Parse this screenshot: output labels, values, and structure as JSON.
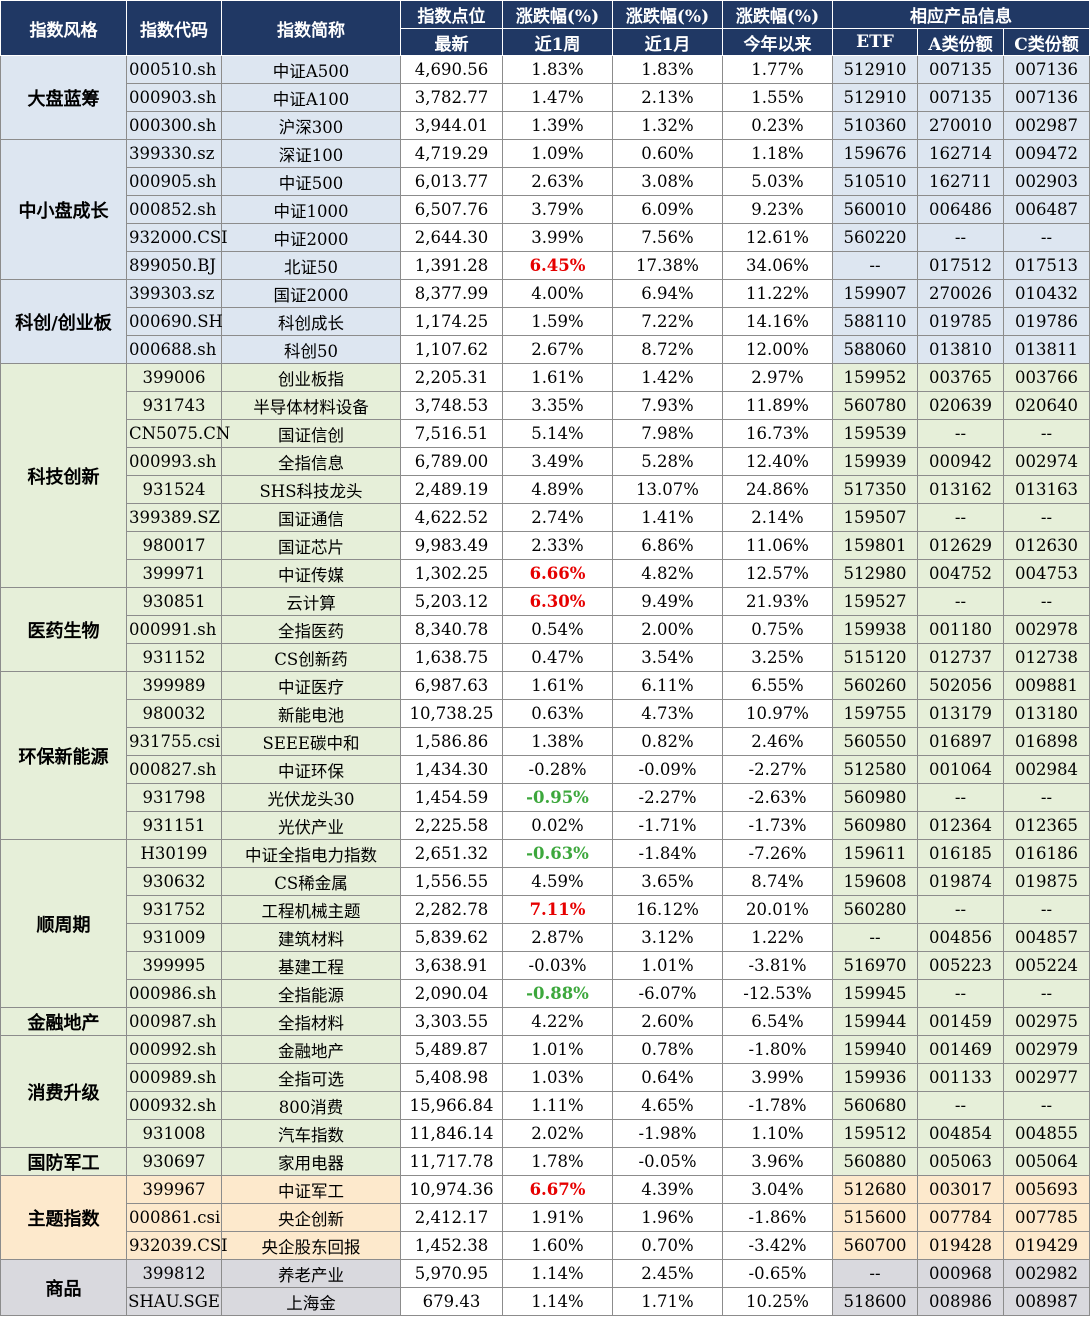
{
  "header": {
    "col_style": "指数风格",
    "col_code": "指数代码",
    "col_name": "指数简称",
    "col_points": "指数点位",
    "col_points_sub": "最新",
    "col_week": "涨跌幅(%)",
    "col_week_sub": "近1周",
    "col_month": "涨跌幅(%)",
    "col_month_sub": "近1月",
    "col_ytd": "涨跌幅(%)",
    "col_ytd_sub": "今年以来",
    "col_products": "相应产品信息",
    "col_etf": "ETF",
    "col_a": "A类份额",
    "col_c": "C类份额"
  },
  "groups": [
    {
      "style": "大盘蓝筹",
      "bg": "blue",
      "rows": [
        {
          "code": "000510.sh",
          "name": "中证A500",
          "points": "4,690.56",
          "week": "1.83%",
          "month": "1.83%",
          "ytd": "1.77%",
          "etf": "512910",
          "a": "007135",
          "c": "007136"
        },
        {
          "code": "000903.sh",
          "name": "中证A100",
          "points": "3,782.77",
          "week": "1.47%",
          "month": "2.13%",
          "ytd": "1.55%",
          "etf": "512910",
          "a": "007135",
          "c": "007136"
        },
        {
          "code": "000300.sh",
          "name": "沪深300",
          "points": "3,944.01",
          "week": "1.39%",
          "month": "1.32%",
          "ytd": "0.23%",
          "etf": "510360",
          "a": "270010",
          "c": "002987"
        }
      ]
    },
    {
      "style": "中小盘成长",
      "bg": "blue",
      "rows": [
        {
          "code": "399330.sz",
          "name": "深证100",
          "points": "4,719.29",
          "week": "1.09%",
          "month": "0.60%",
          "ytd": "1.18%",
          "etf": "159676",
          "a": "162714",
          "c": "009472"
        },
        {
          "code": "000905.sh",
          "name": "中证500",
          "points": "6,013.77",
          "week": "2.63%",
          "month": "3.08%",
          "ytd": "5.03%",
          "etf": "510510",
          "a": "162711",
          "c": "002903"
        },
        {
          "code": "000852.sh",
          "name": "中证1000",
          "points": "6,507.76",
          "week": "3.79%",
          "month": "6.09%",
          "ytd": "9.23%",
          "etf": "560010",
          "a": "006486",
          "c": "006487"
        },
        {
          "code": "932000.CSI",
          "name": "中证2000",
          "points": "2,644.30",
          "week": "3.99%",
          "month": "7.56%",
          "ytd": "12.61%",
          "etf": "560220",
          "a": "--",
          "c": "--"
        },
        {
          "code": "899050.BJ",
          "name": "北证50",
          "points": "1,391.28",
          "week": "6.45%",
          "week_hl": "red",
          "month": "17.38%",
          "ytd": "34.06%",
          "etf": "--",
          "a": "017512",
          "c": "017513"
        }
      ]
    },
    {
      "style": "科创/创业板",
      "bg": "blue",
      "rows": [
        {
          "code": "399303.sz",
          "name": "国证2000",
          "points": "8,377.99",
          "week": "4.00%",
          "month": "6.94%",
          "ytd": "11.22%",
          "etf": "159907",
          "a": "270026",
          "c": "010432"
        },
        {
          "code": "000690.SH",
          "name": "科创成长",
          "points": "1,174.25",
          "week": "1.59%",
          "month": "7.22%",
          "ytd": "14.16%",
          "etf": "588110",
          "a": "019785",
          "c": "019786"
        },
        {
          "code": "000688.sh",
          "name": "科创50",
          "points": "1,107.62",
          "week": "2.67%",
          "month": "8.72%",
          "ytd": "12.00%",
          "etf": "588060",
          "a": "013810",
          "c": "013811"
        }
      ]
    },
    {
      "style": "科技创新",
      "bg": "green",
      "rows": [
        {
          "code": "399006",
          "name": "创业板指",
          "points": "2,205.31",
          "week": "1.61%",
          "month": "1.42%",
          "ytd": "2.97%",
          "etf": "159952",
          "a": "003765",
          "c": "003766"
        },
        {
          "code": "931743",
          "name": "半导体材料设备",
          "points": "3,748.53",
          "week": "3.35%",
          "month": "7.93%",
          "ytd": "11.89%",
          "etf": "560780",
          "a": "020639",
          "c": "020640"
        },
        {
          "code": "CN5075.CN",
          "name": "国证信创",
          "points": "7,516.51",
          "week": "5.14%",
          "month": "7.98%",
          "ytd": "16.73%",
          "etf": "159539",
          "a": "--",
          "c": "--"
        },
        {
          "code": "000993.sh",
          "name": "全指信息",
          "points": "6,789.00",
          "week": "3.49%",
          "month": "5.28%",
          "ytd": "12.40%",
          "etf": "159939",
          "a": "000942",
          "c": "002974"
        },
        {
          "code": "931524",
          "name": "SHS科技龙头",
          "points": "2,489.19",
          "week": "4.89%",
          "month": "13.07%",
          "ytd": "24.86%",
          "etf": "517350",
          "a": "013162",
          "c": "013163"
        },
        {
          "code": "399389.SZ",
          "name": "国证通信",
          "points": "4,622.52",
          "week": "2.74%",
          "month": "1.41%",
          "ytd": "2.14%",
          "etf": "159507",
          "a": "--",
          "c": "--"
        },
        {
          "code": "980017",
          "name": "国证芯片",
          "points": "9,983.49",
          "week": "2.33%",
          "month": "6.86%",
          "ytd": "11.06%",
          "etf": "159801",
          "a": "012629",
          "c": "012630"
        },
        {
          "code": "399971",
          "name": "中证传媒",
          "points": "1,302.25",
          "week": "6.66%",
          "week_hl": "red",
          "month": "4.82%",
          "ytd": "12.57%",
          "etf": "512980",
          "a": "004752",
          "c": "004753"
        }
      ]
    },
    {
      "style": "医药生物",
      "bg": "green",
      "rows": [
        {
          "code": "930851",
          "name": "云计算",
          "points": "5,203.12",
          "week": "6.30%",
          "week_hl": "red",
          "month": "9.49%",
          "ytd": "21.93%",
          "etf": "159527",
          "a": "--",
          "c": "--"
        },
        {
          "code": "000991.sh",
          "name": "全指医药",
          "points": "8,340.78",
          "week": "0.54%",
          "month": "2.00%",
          "ytd": "0.75%",
          "etf": "159938",
          "a": "001180",
          "c": "002978"
        },
        {
          "code": "931152",
          "name": "CS创新药",
          "points": "1,638.75",
          "week": "0.47%",
          "month": "3.54%",
          "ytd": "3.25%",
          "etf": "515120",
          "a": "012737",
          "c": "012738"
        }
      ]
    },
    {
      "style": "环保新能源",
      "bg": "green",
      "rows": [
        {
          "code": "399989",
          "name": "中证医疗",
          "points": "6,987.63",
          "week": "1.61%",
          "month": "6.11%",
          "ytd": "6.55%",
          "etf": "560260",
          "a": "502056",
          "c": "009881"
        },
        {
          "code": "980032",
          "name": "新能电池",
          "points": "10,738.25",
          "week": "0.63%",
          "month": "4.73%",
          "ytd": "10.97%",
          "etf": "159755",
          "a": "013179",
          "c": "013180"
        },
        {
          "code": "931755.csi",
          "name": "SEEE碳中和",
          "points": "1,586.86",
          "week": "1.38%",
          "month": "0.82%",
          "ytd": "2.46%",
          "etf": "560550",
          "a": "016897",
          "c": "016898"
        },
        {
          "code": "000827.sh",
          "name": "中证环保",
          "points": "1,434.30",
          "week": "-0.28%",
          "month": "-0.09%",
          "ytd": "-2.27%",
          "etf": "512580",
          "a": "001064",
          "c": "002984"
        },
        {
          "code": "931798",
          "name": "光伏龙头30",
          "points": "1,454.59",
          "week": "-0.95%",
          "week_hl": "green",
          "month": "-2.27%",
          "ytd": "-2.63%",
          "etf": "560980",
          "a": "--",
          "c": "--"
        },
        {
          "code": "931151",
          "name": "光伏产业",
          "points": "2,225.58",
          "week": "0.02%",
          "month": "-1.71%",
          "ytd": "-1.73%",
          "etf": "560980",
          "a": "012364",
          "c": "012365"
        }
      ]
    },
    {
      "style": "顺周期",
      "bg": "green",
      "rows": [
        {
          "code": "H30199",
          "name": "中证全指电力指数",
          "points": "2,651.32",
          "week": "-0.63%",
          "week_hl": "green",
          "month": "-1.84%",
          "ytd": "-7.26%",
          "etf": "159611",
          "a": "016185",
          "c": "016186"
        },
        {
          "code": "930632",
          "name": "CS稀金属",
          "points": "1,556.55",
          "week": "4.59%",
          "month": "3.65%",
          "ytd": "8.74%",
          "etf": "159608",
          "a": "019874",
          "c": "019875"
        },
        {
          "code": "931752",
          "name": "工程机械主题",
          "points": "2,282.78",
          "week": "7.11%",
          "week_hl": "red",
          "month": "16.12%",
          "ytd": "20.01%",
          "etf": "560280",
          "a": "--",
          "c": "--"
        },
        {
          "code": "931009",
          "name": "建筑材料",
          "points": "5,839.62",
          "week": "2.87%",
          "month": "3.12%",
          "ytd": "1.22%",
          "etf": "--",
          "a": "004856",
          "c": "004857"
        },
        {
          "code": "399995",
          "name": "基建工程",
          "points": "3,638.91",
          "week": "-0.03%",
          "month": "1.01%",
          "ytd": "-3.81%",
          "etf": "516970",
          "a": "005223",
          "c": "005224"
        },
        {
          "code": "000986.sh",
          "name": "全指能源",
          "points": "2,090.04",
          "week": "-0.88%",
          "week_hl": "green",
          "month": "-6.07%",
          "ytd": "-12.53%",
          "etf": "159945",
          "a": "--",
          "c": "--"
        }
      ]
    },
    {
      "style": "金融地产",
      "bg": "green",
      "rows": [
        {
          "code": "000987.sh",
          "name": "全指材料",
          "points": "3,303.55",
          "week": "4.22%",
          "month": "2.60%",
          "ytd": "6.54%",
          "etf": "159944",
          "a": "001459",
          "c": "002975"
        }
      ]
    },
    {
      "style": "消费升级",
      "bg": "green",
      "rows": [
        {
          "code": "000992.sh",
          "name": "金融地产",
          "points": "5,489.87",
          "week": "1.01%",
          "month": "0.78%",
          "ytd": "-1.80%",
          "etf": "159940",
          "a": "001469",
          "c": "002979"
        },
        {
          "code": "000989.sh",
          "name": "全指可选",
          "points": "5,408.98",
          "week": "1.03%",
          "month": "0.64%",
          "ytd": "3.99%",
          "etf": "159936",
          "a": "001133",
          "c": "002977"
        },
        {
          "code": "000932.sh",
          "name": "800消费",
          "points": "15,966.84",
          "week": "1.11%",
          "month": "4.65%",
          "ytd": "-1.78%",
          "etf": "560680",
          "a": "--",
          "c": "--"
        },
        {
          "code": "931008",
          "name": "汽车指数",
          "points": "11,846.14",
          "week": "2.02%",
          "month": "-1.98%",
          "ytd": "1.10%",
          "etf": "159512",
          "a": "004854",
          "c": "004855"
        }
      ]
    },
    {
      "style": "国防军工",
      "bg": "green",
      "rows": [
        {
          "code": "930697",
          "name": "家用电器",
          "points": "11,717.78",
          "week": "1.78%",
          "month": "-0.05%",
          "ytd": "3.96%",
          "etf": "560880",
          "a": "005063",
          "c": "005064"
        }
      ]
    },
    {
      "style": "主题指数",
      "bg": "orange",
      "rows": [
        {
          "code": "399967",
          "name": "中证军工",
          "points": "10,974.36",
          "week": "6.67%",
          "week_hl": "red",
          "month": "4.39%",
          "ytd": "3.04%",
          "etf": "512680",
          "a": "003017",
          "c": "005693"
        },
        {
          "code": "000861.csi",
          "name": "央企创新",
          "points": "2,412.17",
          "week": "1.91%",
          "month": "1.96%",
          "ytd": "-1.86%",
          "etf": "515600",
          "a": "007784",
          "c": "007785"
        },
        {
          "code": "932039.CSI",
          "name": "央企股东回报",
          "points": "1,452.38",
          "week": "1.60%",
          "month": "0.70%",
          "ytd": "-3.42%",
          "etf": "560700",
          "a": "019428",
          "c": "019429"
        }
      ]
    },
    {
      "style": "商品",
      "bg": "gray",
      "rows": [
        {
          "code": "399812",
          "name": "养老产业",
          "points": "5,970.95",
          "week": "1.14%",
          "month": "2.45%",
          "ytd": "-0.65%",
          "etf": "--",
          "a": "000968",
          "c": "002982"
        },
        {
          "code": "SHAU.SGE",
          "name": "上海金",
          "points": "679.43",
          "week": "1.14%",
          "month": "1.71%",
          "ytd": "10.25%",
          "etf": "518600",
          "a": "008986",
          "c": "008987"
        }
      ]
    }
  ]
}
